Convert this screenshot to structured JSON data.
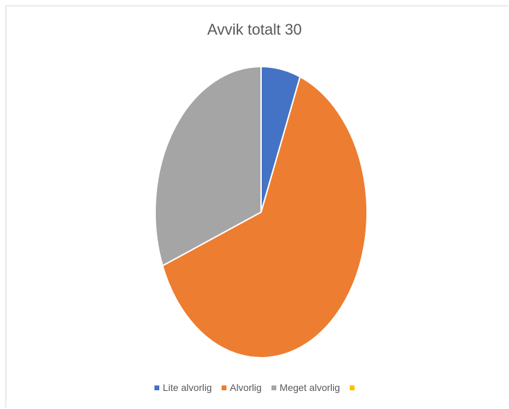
{
  "chart_data": {
    "type": "pie",
    "title": "Avvik totalt 30",
    "categories": [
      "Lite alvorlig",
      "Alvorlig",
      "Meget alvorlig",
      ""
    ],
    "values": [
      6,
      63,
      31,
      0
    ],
    "colors": [
      "#4472c4",
      "#ed7d31",
      "#a5a5a5",
      "#ffc000"
    ],
    "legend_position": "bottom"
  }
}
